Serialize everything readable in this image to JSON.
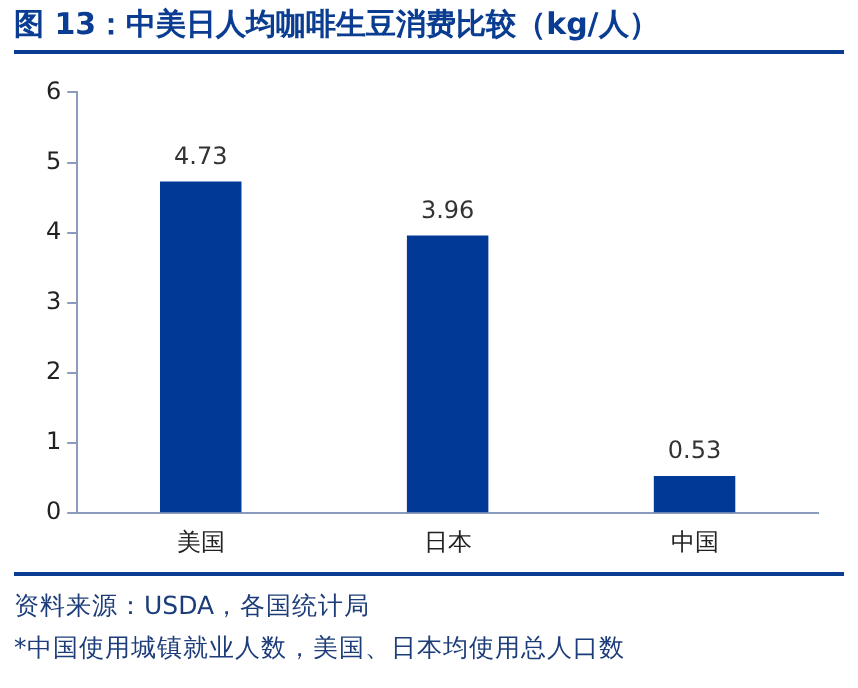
{
  "chart_data": {
    "type": "bar",
    "title": "图 13：中美日人均咖啡生豆消费比较（kg/人）",
    "categories": [
      "美国",
      "日本",
      "中国"
    ],
    "values": [
      4.73,
      3.96,
      0.53
    ],
    "color": "#003a96",
    "ylim": [
      0,
      6
    ],
    "yticks": [
      0,
      1,
      2,
      3,
      4,
      5,
      6
    ],
    "grid": false,
    "legend": false,
    "data_labels": true,
    "annotations": [
      "资料来源：USDA，各国统计局",
      "*中国使用城镇就业人数，美国、日本均使用总人口数"
    ]
  }
}
